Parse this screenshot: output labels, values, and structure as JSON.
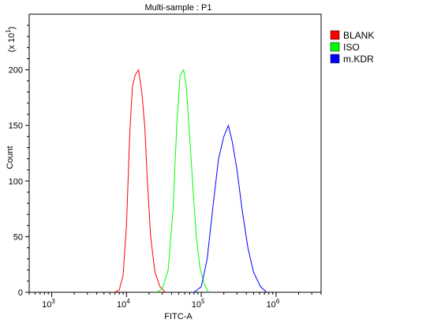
{
  "chart_data": {
    "type": "line",
    "title": "Multi-sample : P1",
    "xlabel": "FITC-A",
    "ylabel": "Count",
    "y_multiplier_label": "(x 10",
    "y_multiplier_exp": "1",
    "x_scale": "log",
    "xlim": [
      500,
      4000000
    ],
    "ylim": [
      0,
      250
    ],
    "x_ticks": [
      {
        "value": 1000,
        "base": "10",
        "exp": "3"
      },
      {
        "value": 10000,
        "base": "10",
        "exp": "4"
      },
      {
        "value": 100000,
        "base": "10",
        "exp": "5"
      },
      {
        "value": 1000000,
        "base": "10",
        "exp": "6"
      }
    ],
    "y_ticks": [
      0,
      50,
      100,
      150,
      200
    ],
    "grid": false,
    "legend_position": "top-right",
    "series": [
      {
        "name": "BLANK",
        "color": "#ff0000",
        "points": [
          [
            7000,
            0
          ],
          [
            8000,
            2
          ],
          [
            9000,
            15
          ],
          [
            10000,
            60
          ],
          [
            11000,
            140
          ],
          [
            12000,
            185
          ],
          [
            13000,
            195
          ],
          [
            14500,
            200
          ],
          [
            16000,
            180
          ],
          [
            17500,
            150
          ],
          [
            19000,
            100
          ],
          [
            21000,
            50
          ],
          [
            24000,
            18
          ],
          [
            28000,
            5
          ],
          [
            33000,
            0
          ]
        ]
      },
      {
        "name": "ISO",
        "color": "#00ff00",
        "points": [
          [
            25000,
            0
          ],
          [
            30000,
            3
          ],
          [
            36000,
            20
          ],
          [
            42000,
            75
          ],
          [
            47000,
            150
          ],
          [
            52000,
            195
          ],
          [
            58000,
            200
          ],
          [
            63000,
            185
          ],
          [
            70000,
            140
          ],
          [
            78000,
            90
          ],
          [
            86000,
            50
          ],
          [
            96000,
            22
          ],
          [
            110000,
            7
          ],
          [
            125000,
            0
          ]
        ]
      },
      {
        "name": "m.KDR",
        "color": "#0000ff",
        "points": [
          [
            80000,
            0
          ],
          [
            100000,
            5
          ],
          [
            120000,
            30
          ],
          [
            145000,
            80
          ],
          [
            170000,
            120
          ],
          [
            200000,
            140
          ],
          [
            230000,
            150
          ],
          [
            260000,
            135
          ],
          [
            300000,
            110
          ],
          [
            350000,
            75
          ],
          [
            420000,
            40
          ],
          [
            500000,
            18
          ],
          [
            620000,
            5
          ],
          [
            750000,
            0
          ]
        ]
      }
    ]
  }
}
